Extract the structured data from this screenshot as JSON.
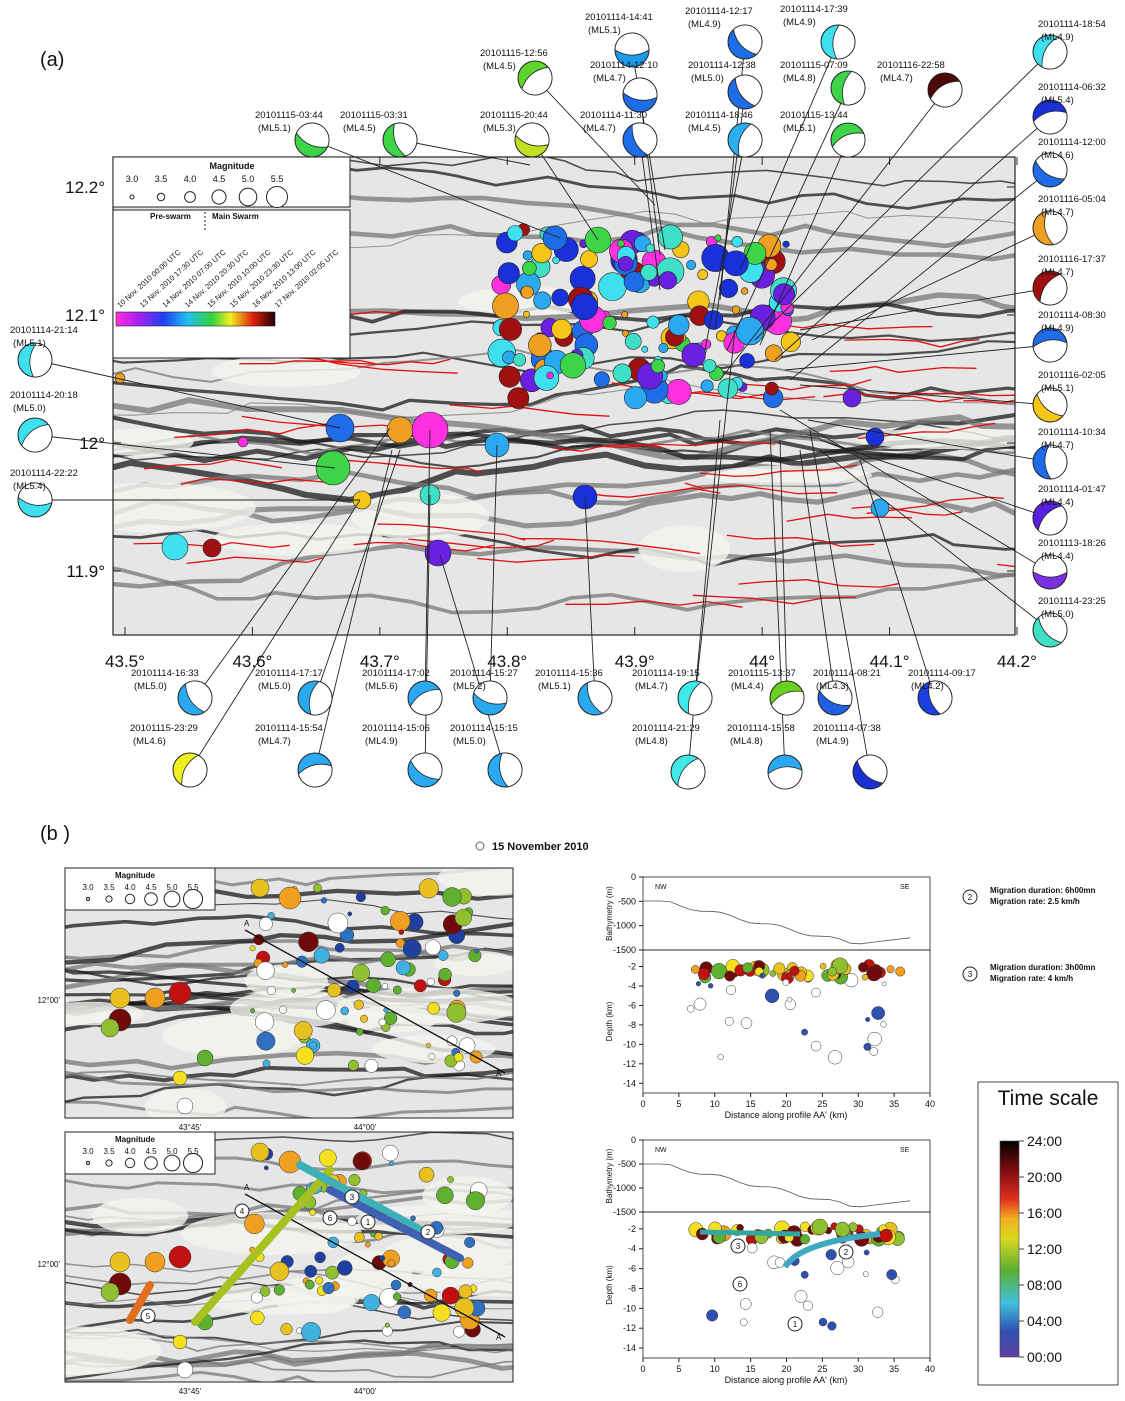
{
  "panel_a": {
    "label": "(a)",
    "longitude_ticks": [
      "43.5°",
      "43.6°",
      "43.7°",
      "43.8°",
      "43.9°",
      "44°",
      "44.1°",
      "44.2°"
    ],
    "latitude_ticks": [
      "12.2°",
      "12.1°",
      "12°",
      "11.9°"
    ],
    "legend": {
      "magnitude_title": "Magnitude",
      "magnitudes": [
        "3.0",
        "3.5",
        "4.0",
        "4.5",
        "5.0",
        "5.5"
      ],
      "phases": [
        "Pre-swarm",
        "Main Swarm"
      ],
      "times": [
        "10 Nov. 2010 00:00 UTC",
        "13 Nov. 2010 17:30 UTC",
        "14 Nov. 2010 07:00 UTC",
        "14 Nov. 2010 20:30 UTC",
        "15 Nov. 2010 10:00 UTC",
        "15 Nov. 2010 23:30 UTC",
        "16 Nov. 2010 13:00 UTC",
        "17 Nov. 2010 02:05 UTC"
      ]
    },
    "mechanisms": [
      {
        "event": "20101114-14:41",
        "magnitude": "(ML5.1)",
        "color": "#1e9be8"
      },
      {
        "event": "20101114-12:17",
        "magnitude": "(ML4.9)",
        "color": "#1e6ce8"
      },
      {
        "event": "20101114-17:39",
        "magnitude": "(ML4.9)",
        "color": "#3ee0f0"
      },
      {
        "event": "20101115-12:56",
        "magnitude": "(ML4.5)",
        "color": "#5ed42e"
      },
      {
        "event": "20101114-12:10",
        "magnitude": "(ML4.7)",
        "color": "#1e6ce8"
      },
      {
        "event": "20101114-12:38",
        "magnitude": "(ML5.0)",
        "color": "#1e6ce8"
      },
      {
        "event": "20101115-07:09",
        "magnitude": "(ML4.8)",
        "color": "#3ed44a"
      },
      {
        "event": "20101116-22:58",
        "magnitude": "(ML4.7)",
        "color": "#4a0808"
      },
      {
        "event": "20101115-20:44",
        "magnitude": "(ML5.3)",
        "color": "#c0e020"
      },
      {
        "event": "20101114-11:30",
        "magnitude": "(ML4.7)",
        "color": "#1e6ce8"
      },
      {
        "event": "20101114-18:46",
        "magnitude": "(ML4.5)",
        "color": "#2ab0f0"
      },
      {
        "event": "20101115-13:44",
        "magnitude": "(ML5.1)",
        "color": "#3ed44a"
      },
      {
        "event": "20101115-03:44",
        "magnitude": "(ML5.1)",
        "color": "#3ed44a"
      },
      {
        "event": "20101115-03:31",
        "magnitude": "(ML4.5)",
        "color": "#3ed44a"
      },
      {
        "event": "20101114-18:54",
        "magnitude": "(ML4.9)",
        "color": "#3ee0f0"
      },
      {
        "event": "20101114-06:32",
        "magnitude": "(ML5.4)",
        "color": "#1a30d8"
      },
      {
        "event": "20101114-12:00",
        "magnitude": "(ML4.6)",
        "color": "#1e6ce8"
      },
      {
        "event": "20101116-05:04",
        "magnitude": "(ML4.7)",
        "color": "#f0a020"
      },
      {
        "event": "20101116-17:37",
        "magnitude": "(ML4.7)",
        "color": "#a01010"
      },
      {
        "event": "20101114-08:30",
        "magnitude": "(ML4.9)",
        "color": "#1e6ce8"
      },
      {
        "event": "20101116-02:05",
        "magnitude": "(ML5.1)",
        "color": "#f5c518"
      },
      {
        "event": "20101114-10:34",
        "magnitude": "(ML4.7)",
        "color": "#1e6ce8"
      },
      {
        "event": "20101114-01:47",
        "magnitude": "(ML4.4)",
        "color": "#5a20e0"
      },
      {
        "event": "20101113-18:26",
        "magnitude": "(ML4.4)",
        "color": "#7a30e0"
      },
      {
        "event": "20101114-23:25",
        "magnitude": "(ML5.0)",
        "color": "#40e0c8"
      },
      {
        "event": "20101114-21:14",
        "magnitude": "(ML5.1)",
        "color": "#3ee0f0"
      },
      {
        "event": "20101114-20:18",
        "magnitude": "(ML5.0)",
        "color": "#3ee0f0"
      },
      {
        "event": "20101114-22:22",
        "magnitude": "(ML5.4)",
        "color": "#3ee0f0"
      },
      {
        "event": "20101114-16:33",
        "magnitude": "(ML5.0)",
        "color": "#2aa8f0"
      },
      {
        "event": "20101114-17:17",
        "magnitude": "(ML5.0)",
        "color": "#2aa8f0"
      },
      {
        "event": "20101114-17:02",
        "magnitude": "(ML5.6)",
        "color": "#2aa8f0"
      },
      {
        "event": "20101114-15:27",
        "magnitude": "(ML5.2)",
        "color": "#2aa8f0"
      },
      {
        "event": "20101114-15:36",
        "magnitude": "(ML5.1)",
        "color": "#2aa8f0"
      },
      {
        "event": "20101114-19:15",
        "magnitude": "(ML4.7)",
        "color": "#40e8e8"
      },
      {
        "event": "20101115-13:37",
        "magnitude": "(ML4.4)",
        "color": "#6ad020"
      },
      {
        "event": "20101114-08:21",
        "magnitude": "(ML4.3)",
        "color": "#2060e0"
      },
      {
        "event": "20101114-09:17",
        "magnitude": "(ML4.2)",
        "color": "#1a40e0"
      },
      {
        "event": "20101115-23:29",
        "magnitude": "(ML4.6)",
        "color": "#f0f020"
      },
      {
        "event": "20101114-15:54",
        "magnitude": "(ML4.7)",
        "color": "#2aa8f0"
      },
      {
        "event": "20101114-15:06",
        "magnitude": "(ML4.9)",
        "color": "#2aa8f0"
      },
      {
        "event": "20101114-15:15",
        "magnitude": "(ML5.0)",
        "color": "#2aa8f0"
      },
      {
        "event": "20101114-21:29",
        "magnitude": "(ML4.8)",
        "color": "#40e8e8"
      },
      {
        "event": "20101114-15:58",
        "magnitude": "(ML4.8)",
        "color": "#2aa8f0"
      },
      {
        "event": "20101114-07:38",
        "magnitude": "(ML4.9)",
        "color": "#1a30d0"
      }
    ]
  },
  "panel_b": {
    "label": "(b )",
    "date_legend": "15 November 2010",
    "map_longitude_ticks": [
      "43°45'",
      "44°00'"
    ],
    "map_latitude_tick": "12°00'",
    "profile_ends": [
      "A",
      "A'"
    ],
    "migration_labels": [
      "1",
      "2",
      "3",
      "4",
      "5",
      "6"
    ],
    "migrations": [
      {
        "number": "2",
        "duration": "Migration duration: 6h00mn",
        "rate": "Migration rate: 2.5 km/h"
      },
      {
        "number": "3",
        "duration": "Migration duration: 3h00mn",
        "rate": "Migration rate: 4 km/h"
      }
    ],
    "cross_sections": {
      "ends": [
        "NW",
        "SE"
      ],
      "bathymetry_label": "Bathymetry (m)",
      "depth_label": "Depth (km)",
      "x_label": "Distance along profile AA' (km)",
      "xlim": [
        0,
        40
      ],
      "xticks": [
        0,
        5,
        10,
        15,
        20,
        25,
        30,
        35,
        40
      ],
      "bathymetry_ylim": [
        -1500,
        0
      ],
      "bathymetry_yticks": [
        0,
        -500,
        -1000,
        -1500
      ],
      "depth_ylim": [
        -15,
        -0.3
      ],
      "depth_yticks": [
        -2,
        -4,
        -6,
        -8,
        -10,
        -12,
        -14
      ]
    },
    "time_scale": {
      "title": "Time scale",
      "ticks": [
        "24:00",
        "20:00",
        "16:00",
        "12:00",
        "08:00",
        "04:00",
        "00:00"
      ]
    }
  }
}
